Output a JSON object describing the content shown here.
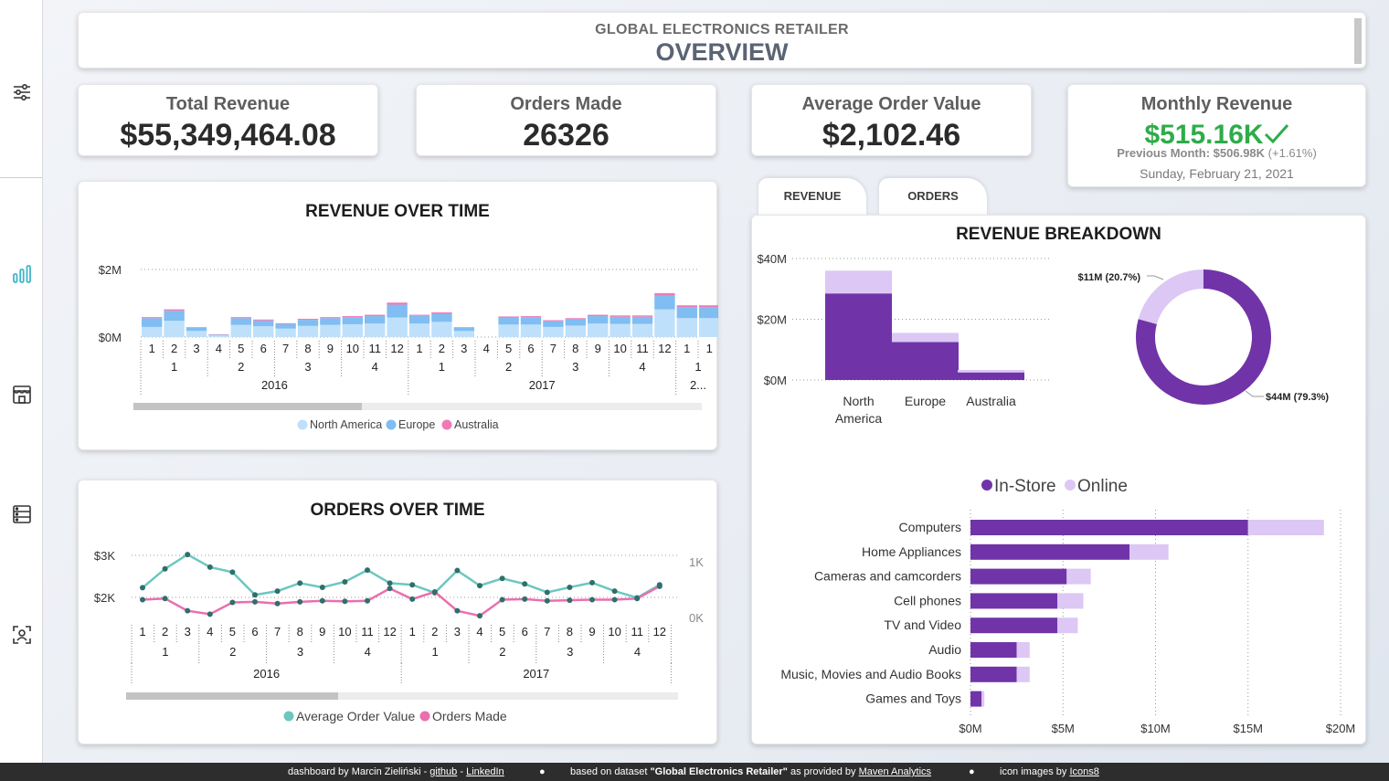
{
  "header": {
    "subtitle": "GLOBAL ELECTRONICS RETAILER",
    "title": "OVERVIEW"
  },
  "sidebar": {
    "icons": [
      "filter-sliders-icon",
      "bar-chart-icon",
      "store-icon",
      "server-list-icon",
      "user-scan-icon"
    ]
  },
  "kpis": {
    "total_revenue": {
      "label": "Total Revenue",
      "value": "$55,349,464.08"
    },
    "orders_made": {
      "label": "Orders Made",
      "value": "26326"
    },
    "avg_order_value": {
      "label": "Average Order Value",
      "value": "$2,102.46"
    },
    "monthly_revenue": {
      "label": "Monthly Revenue",
      "value": "$515.16K",
      "prev_label": "Previous Month:",
      "prev_value": "$506.98K",
      "prev_change": "(+1.61%)",
      "date": "Sunday, February 21, 2021"
    }
  },
  "tabs": [
    "REVENUE",
    "ORDERS"
  ],
  "colors": {
    "north_america": "#bfe0fb",
    "europe": "#7fbdf2",
    "australia": "#f07ab6",
    "avg_order_value": "#6cc7c0",
    "orders_made": "#ea6fae",
    "in_store": "#7034a8",
    "online": "#dcc7f5",
    "green": "#2eac4a"
  },
  "chart_data": [
    {
      "type": "bar",
      "title": "REVENUE OVER TIME",
      "stacked": true,
      "x_months": [
        "1",
        "2",
        "3",
        "4",
        "5",
        "6",
        "7",
        "8",
        "9",
        "10",
        "11",
        "12",
        "1",
        "2",
        "3",
        "4",
        "5",
        "6",
        "7",
        "8",
        "9",
        "10",
        "11",
        "12",
        "1",
        "1"
      ],
      "x_quarters": [
        "1",
        "2",
        "3",
        "4",
        "1",
        "2",
        "3",
        "4",
        "1"
      ],
      "x_years": [
        "2016",
        "2017",
        "2..."
      ],
      "y_ticks": [
        "$2M",
        "$0M"
      ],
      "ylim": [
        0,
        2000000
      ],
      "legend": [
        "North America",
        "Europe",
        "Australia"
      ],
      "series": [
        {
          "name": "North America",
          "values": [
            300000,
            480000,
            180000,
            50000,
            360000,
            320000,
            250000,
            330000,
            360000,
            380000,
            400000,
            580000,
            400000,
            450000,
            180000,
            0,
            370000,
            370000,
            300000,
            340000,
            400000,
            390000,
            390000,
            820000,
            560000,
            560000
          ]
        },
        {
          "name": "Europe",
          "values": [
            260000,
            300000,
            90000,
            20000,
            200000,
            170000,
            140000,
            180000,
            200000,
            210000,
            220000,
            380000,
            230000,
            240000,
            90000,
            0,
            210000,
            220000,
            170000,
            190000,
            220000,
            210000,
            210000,
            410000,
            330000,
            330000
          ]
        },
        {
          "name": "Australia",
          "values": [
            30000,
            40000,
            20000,
            10000,
            30000,
            30000,
            20000,
            30000,
            30000,
            30000,
            40000,
            60000,
            30000,
            40000,
            20000,
            0,
            30000,
            30000,
            30000,
            30000,
            40000,
            40000,
            40000,
            70000,
            50000,
            50000
          ]
        }
      ]
    },
    {
      "type": "line",
      "title": "ORDERS OVER TIME",
      "x_months": [
        "1",
        "2",
        "3",
        "4",
        "5",
        "6",
        "7",
        "8",
        "9",
        "10",
        "11",
        "12",
        "1",
        "2",
        "3",
        "4",
        "5",
        "6",
        "7",
        "8",
        "9",
        "10",
        "11",
        "12"
      ],
      "x_quarters": [
        "1",
        "2",
        "3",
        "4",
        "1",
        "2",
        "3",
        "4"
      ],
      "x_years": [
        "2016",
        "2017"
      ],
      "y_left_ticks": [
        "$3K",
        "$2K"
      ],
      "y_right_ticks": [
        "1K",
        "0K"
      ],
      "legend": [
        "Average Order Value",
        "Orders Made"
      ],
      "series": [
        {
          "name": "Average Order Value",
          "axis": "left",
          "values": [
            2230,
            2680,
            3020,
            2720,
            2600,
            2060,
            2150,
            2340,
            2240,
            2370,
            2650,
            2340,
            2300,
            2110,
            2640,
            2280,
            2450,
            2320,
            2120,
            2240,
            2350,
            2150,
            1990,
            2300
          ]
        },
        {
          "name": "Orders Made",
          "axis": "right",
          "values": [
            320,
            340,
            120,
            60,
            270,
            280,
            250,
            280,
            300,
            290,
            300,
            520,
            330,
            460,
            120,
            30,
            320,
            330,
            300,
            310,
            320,
            320,
            340,
            560
          ]
        }
      ]
    },
    {
      "type": "bar",
      "title": "REVENUE BREAKDOWN",
      "stacked": true,
      "categories": [
        "North America",
        "Europe",
        "Australia"
      ],
      "y_ticks": [
        "$40M",
        "$20M",
        "$0M"
      ],
      "ylim": [
        0,
        40000000
      ],
      "series": [
        {
          "name": "In-Store",
          "values": [
            28500000,
            12500000,
            2500000
          ]
        },
        {
          "name": "Online",
          "values": [
            7500000,
            3000000,
            800000
          ]
        }
      ]
    },
    {
      "type": "pie",
      "donut": true,
      "slices": [
        {
          "name": "In-Store",
          "value": 79.3,
          "label": "$44M (79.3%)"
        },
        {
          "name": "Online",
          "value": 20.7,
          "label": "$11M (20.7%)"
        }
      ]
    },
    {
      "type": "bar",
      "orientation": "horizontal",
      "stacked": true,
      "legend": [
        "In-Store",
        "Online"
      ],
      "categories": [
        "Computers",
        "Home Appliances",
        "Cameras and camcorders",
        "Cell phones",
        "TV and Video",
        "Audio",
        "Music, Movies and Audio Books",
        "Games and Toys"
      ],
      "x_ticks": [
        "$0M",
        "$5M",
        "$10M",
        "$15M",
        "$20M"
      ],
      "xlim": [
        0,
        20000000
      ],
      "series": [
        {
          "name": "In-Store",
          "values": [
            15000000,
            8600000,
            5200000,
            4700000,
            4700000,
            2500000,
            2500000,
            600000
          ]
        },
        {
          "name": "Online",
          "values": [
            4100000,
            2100000,
            1300000,
            1400000,
            1100000,
            700000,
            700000,
            150000
          ]
        }
      ]
    }
  ],
  "footer": {
    "credit_prefix": "dashboard by Marcin Zieliński -",
    "github": "github",
    "dash": "-",
    "linkedin": "LinkedIn",
    "bullet": "●",
    "dataset_prefix": "based on dataset",
    "dataset_name": "\"Global Electronics Retailer\"",
    "dataset_suffix": "as provided by",
    "maven": "Maven Analytics",
    "icons_prefix": "icon images by",
    "icons8": "Icons8"
  }
}
